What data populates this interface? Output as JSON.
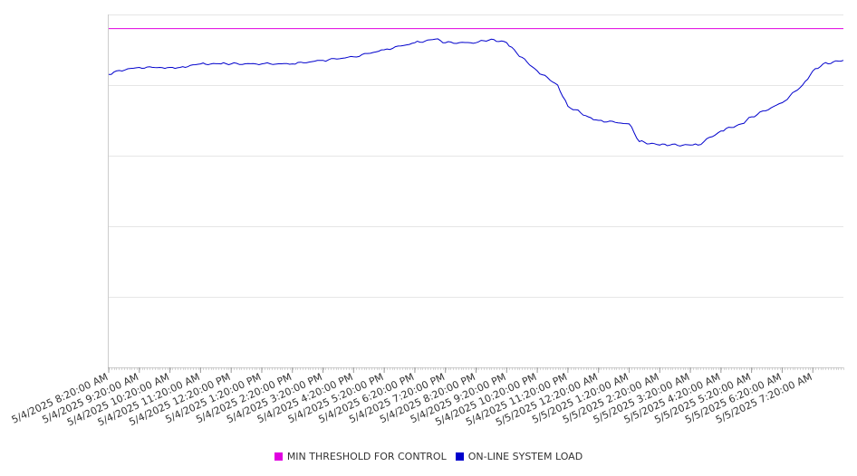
{
  "chart_data": {
    "type": "line",
    "title": "",
    "xlabel": "",
    "ylabel": "",
    "grid": true,
    "legend_position": "bottom",
    "x_range": [
      "5/4/2025 8:20:00 AM",
      "5/5/2025 8:20:00 AM"
    ],
    "tick_labels": [
      "5/4/2025 8:20:00 AM",
      "5/4/2025 9:20:00 AM",
      "5/4/2025 10:20:00 AM",
      "5/4/2025 11:20:00 AM",
      "5/4/2025 12:20:00 PM",
      "5/4/2025 1:20:00 PM",
      "5/4/2025 2:20:00 PM",
      "5/4/2025 3:20:00 PM",
      "5/4/2025 4:20:00 PM",
      "5/4/2025 5:20:00 PM",
      "5/4/2025 6:20:00 PM",
      "5/4/2025 7:20:00 PM",
      "5/4/2025 8:20:00 PM",
      "5/4/2025 9:20:00 PM",
      "5/4/2025 10:20:00 PM",
      "5/4/2025 11:20:00 PM",
      "5/5/2025 12:20:00 AM",
      "5/5/2025 1:20:00 AM",
      "5/5/2025 2:20:00 AM",
      "5/5/2025 3:20:00 AM",
      "5/5/2025 4:20:00 AM",
      "5/5/2025 5:20:00 AM",
      "5/5/2025 6:20:00 AM",
      "5/5/2025 7:20:00 AM"
    ],
    "ylim": [
      0,
      100
    ],
    "series": [
      {
        "name": "MIN THRESHOLD FOR CONTROL",
        "color": "#e000e0",
        "x": [
          "5/4/2025 8:20:00 AM",
          "5/5/2025 8:20:00 AM"
        ],
        "values": [
          96,
          96
        ]
      },
      {
        "name": "ON-LINE SYSTEM LOAD",
        "color": "#0000cc",
        "x": [
          "5/4/2025 8:20:00 AM",
          "5/4/2025 8:35:00 AM",
          "5/4/2025 9:20:00 AM",
          "5/4/2025 10:00:00 AM",
          "5/4/2025 10:20:00 AM",
          "5/4/2025 10:40:00 AM",
          "5/4/2025 11:20:00 AM",
          "5/4/2025 12:00:00 PM",
          "5/4/2025 12:20:00 PM",
          "5/4/2025 1:20:00 PM",
          "5/4/2025 2:20:00 PM",
          "5/4/2025 3:20:00 PM",
          "5/4/2025 4:20:00 PM",
          "5/4/2025 5:20:00 PM",
          "5/4/2025 6:20:00 PM",
          "5/4/2025 7:00:00 PM",
          "5/4/2025 7:20:00 PM",
          "5/4/2025 8:20:00 PM",
          "5/4/2025 8:50:00 PM",
          "5/4/2025 9:20:00 PM",
          "5/4/2025 9:40:00 PM",
          "5/4/2025 10:20:00 PM",
          "5/4/2025 11:00:00 PM",
          "5/4/2025 11:20:00 PM",
          "5/4/2025 11:35:00 PM",
          "5/5/2025 12:00:00 AM",
          "5/5/2025 12:20:00 AM",
          "5/5/2025 1:20:00 AM",
          "5/5/2025 1:40:00 AM",
          "5/5/2025 2:20:00 AM",
          "5/5/2025 2:40:00 AM",
          "5/5/2025 3:20:00 AM",
          "5/5/2025 3:35:00 AM",
          "5/5/2025 4:20:00 AM",
          "5/5/2025 5:00:00 AM",
          "5/5/2025 5:20:00 AM",
          "5/5/2025 6:20:00 AM",
          "5/5/2025 7:00:00 AM",
          "5/5/2025 7:20:00 AM",
          "5/5/2025 7:40:00 AM",
          "5/5/2025 8:20:00 AM"
        ],
        "values": [
          83,
          84,
          85,
          85,
          85,
          85,
          86,
          86,
          86,
          86,
          86,
          87,
          88,
          90,
          92,
          93,
          92,
          92,
          93,
          92,
          89,
          84,
          80,
          74,
          73,
          71,
          70,
          69,
          64,
          63,
          63,
          63,
          63,
          67,
          69,
          71,
          75,
          80,
          84,
          86,
          87
        ]
      }
    ]
  }
}
